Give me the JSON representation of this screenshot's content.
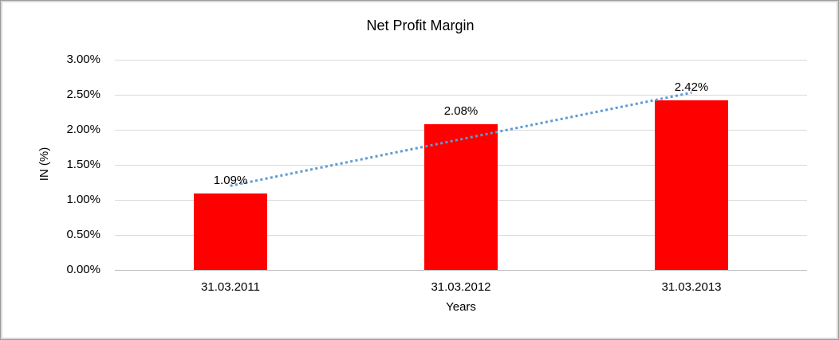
{
  "window": {
    "background_color": "#ffffff",
    "frame_border_color": "#d9d9d9"
  },
  "chart_data": {
    "type": "bar",
    "title": "Net Profit Margin",
    "xlabel": "Years",
    "ylabel": "IN (%)",
    "categories": [
      "31.03.2011",
      "31.03.2012",
      "31.03.2013"
    ],
    "values": [
      1.09,
      2.08,
      2.42
    ],
    "data_labels": [
      "1.09%",
      "2.08%",
      "2.42%"
    ],
    "ylim": [
      0,
      3
    ],
    "ytick_step": 0.5,
    "ytick_labels": [
      "0.00%",
      "0.50%",
      "1.00%",
      "1.50%",
      "2.00%",
      "2.50%",
      "3.00%"
    ],
    "grid": true,
    "legend": "none",
    "bar_color": "#ff0000",
    "gridline_color": "#d9d9d9",
    "axis_line_color": "#bfbfbf",
    "text_color": "#000000",
    "trendline": {
      "type": "linear",
      "style": "dotted",
      "color": "#5b9bd5",
      "start_value": 1.2,
      "end_value": 2.53
    }
  }
}
